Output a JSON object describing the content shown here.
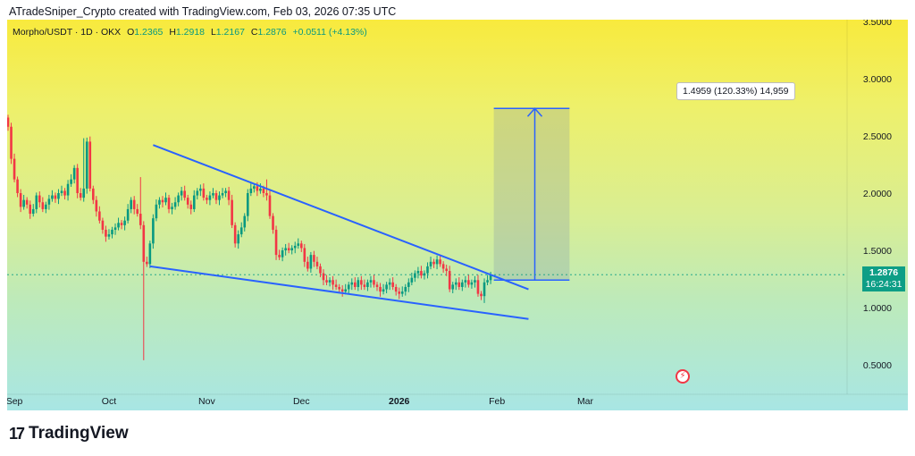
{
  "header": {
    "caption": "ATradeSniper_Crypto created with TradingView.com, Feb 03, 2026 07:35 UTC"
  },
  "symbol_bar": {
    "symbol": "Morpho/USDT · 1D · OKX",
    "open_key": "O",
    "open": "1.2365",
    "high_key": "H",
    "high": "1.2918",
    "low_key": "L",
    "low": "1.2167",
    "close_key": "C",
    "close": "1.2876",
    "change": "+0.0511 (+4.13%)"
  },
  "price_label": {
    "price": "1.2876",
    "countdown": "16:24:31"
  },
  "measure_label": {
    "text": "1.4959 (120.33%) 14,959"
  },
  "footer": {
    "brand": "TradingView",
    "brand_mark": "17"
  },
  "icons": {
    "flash": "flash-icon",
    "logo": "tradingview-logo-icon"
  },
  "colors": {
    "up": "#089981",
    "down": "#f23645",
    "trendline": "#2962ff",
    "price_label_bg": "#0d9e86"
  },
  "chart_data": {
    "type": "candlestick",
    "title": "Morpho/USDT · 1D · OKX",
    "xlabel": "",
    "ylabel": "",
    "ylim": [
      0.4,
      3.55
    ],
    "y_ticks": [
      "3.5000",
      "3.0000",
      "2.5000",
      "2.0000",
      "1.5000",
      "1.0000",
      "0.5000"
    ],
    "x_ticks": [
      {
        "label": "Sep",
        "bold": false
      },
      {
        "label": "Oct",
        "bold": false
      },
      {
        "label": "Nov",
        "bold": false
      },
      {
        "label": "Dec",
        "bold": false
      },
      {
        "label": "2026",
        "bold": true
      },
      {
        "label": "Feb",
        "bold": false
      },
      {
        "label": "Mar",
        "bold": false
      }
    ],
    "x_tick_days": [
      2,
      32,
      63,
      93,
      124,
      155,
      183
    ],
    "start_date": "2025-08-31",
    "close_series": [
      2.58,
      2.3,
      2.12,
      2.0,
      1.88,
      1.94,
      1.9,
      1.82,
      1.86,
      1.98,
      1.92,
      1.86,
      1.9,
      1.95,
      1.98,
      1.95,
      2.0,
      2.02,
      1.98,
      2.08,
      2.12,
      2.22,
      2.0,
      1.96,
      2.04,
      2.45,
      2.04,
      1.94,
      1.84,
      1.76,
      1.68,
      1.62,
      1.64,
      1.68,
      1.7,
      1.74,
      1.72,
      1.76,
      1.86,
      1.94,
      1.86,
      1.82,
      1.72,
      1.4,
      1.38,
      1.56,
      1.78,
      1.9,
      1.94,
      1.92,
      1.96,
      1.86,
      1.88,
      1.92,
      1.98,
      2.02,
      1.96,
      1.9,
      1.86,
      1.98,
      2.02,
      2.04,
      1.96,
      1.94,
      1.98,
      2.0,
      1.94,
      1.98,
      2.0,
      2.02,
      1.94,
      1.72,
      1.56,
      1.64,
      1.7,
      1.8,
      2.0,
      2.04,
      2.06,
      2.02,
      2.04,
      2.0,
      1.98,
      1.8,
      1.68,
      1.46,
      1.44,
      1.5,
      1.52,
      1.5,
      1.52,
      1.54,
      1.56,
      1.52,
      1.4,
      1.34,
      1.46,
      1.4,
      1.36,
      1.3,
      1.24,
      1.22,
      1.24,
      1.2,
      1.18,
      1.16,
      1.14,
      1.16,
      1.2,
      1.22,
      1.18,
      1.24,
      1.2,
      1.18,
      1.22,
      1.24,
      1.2,
      1.18,
      1.14,
      1.16,
      1.2,
      1.22,
      1.18,
      1.14,
      1.12,
      1.14,
      1.18,
      1.22,
      1.26,
      1.3,
      1.32,
      1.28,
      1.3,
      1.36,
      1.4,
      1.38,
      1.42,
      1.38,
      1.34,
      1.32,
      1.16,
      1.2,
      1.22,
      1.18,
      1.22,
      1.24,
      1.2,
      1.22,
      1.24,
      1.12,
      1.1,
      1.22,
      1.24,
      1.2876
    ],
    "open_first": 2.66,
    "spikes": [
      {
        "day": 24,
        "high": 2.48
      },
      {
        "day": 42,
        "high": 2.14
      },
      {
        "day": 43,
        "low": 0.54
      },
      {
        "day": 82,
        "high": 2.12
      },
      {
        "day": 151,
        "low": 1.04
      }
    ],
    "descending_resistance": [
      {
        "day": 46,
        "price": 2.42
      },
      {
        "day": 165,
        "price": 1.16
      }
    ],
    "descending_support": [
      {
        "day": 45,
        "price": 1.36
      },
      {
        "day": 165,
        "price": 0.9
      }
    ],
    "measure": {
      "day_start": 154,
      "day_end": 178,
      "price_from": 1.24,
      "price_to": 2.74,
      "arrow_day": 167
    },
    "current_price_line": 1.2876
  }
}
